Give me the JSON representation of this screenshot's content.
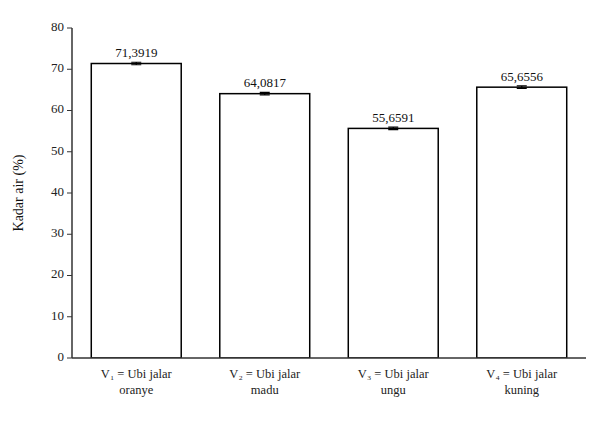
{
  "chart_data": {
    "type": "bar",
    "categories": [
      "V₁ = Ubi jalar\noranye",
      "V₂ = Ubi jalar\nmadu",
      "V₃ = Ubi jalar\nungu",
      "V₄ = Ubi jalar\nkuning"
    ],
    "values": [
      71.3919,
      64.0817,
      55.6591,
      65.6556
    ],
    "errors": [
      0.3,
      0.3,
      0.3,
      0.3
    ],
    "value_labels": [
      "71,3919",
      "64,0817",
      "55,6591",
      "65,6556"
    ],
    "data_labels": true,
    "color": "#ffffff",
    "ylabel": "Kadar air (%)",
    "ylim": [
      0,
      80
    ],
    "yticks": [
      0,
      10,
      20,
      30,
      40,
      50,
      60,
      70,
      80
    ],
    "grid": false
  }
}
